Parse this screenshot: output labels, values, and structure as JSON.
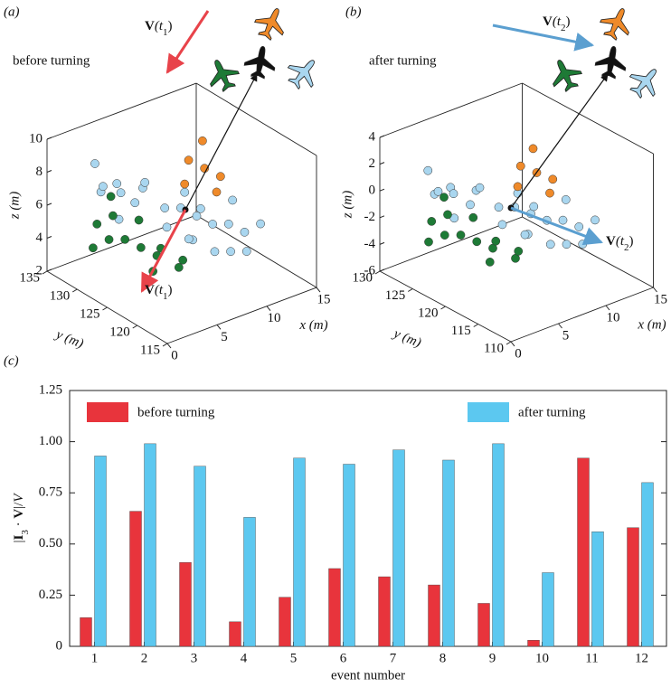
{
  "chart_data": [
    {
      "type": "scatter3d",
      "label": "(a)",
      "note": "before turning",
      "vectors": [
        [
          "V",
          "(t",
          "1",
          ")"
        ],
        [
          "V",
          "(t",
          "1",
          ")"
        ]
      ],
      "xlabel": "x (m)",
      "ylabel": "y (m)",
      "zlabel": "z (m)",
      "xlim": [
        0,
        15
      ],
      "ylim": [
        115,
        135
      ],
      "zlim": [
        2,
        10
      ],
      "xticks": [
        0,
        5,
        10,
        15
      ],
      "yticks": [
        115,
        120,
        125,
        130,
        135
      ],
      "zticks": [
        2,
        4,
        6,
        8,
        10
      ],
      "groups": [
        {
          "color": "#a9d6ef",
          "x": [
            3,
            4,
            2,
            5,
            3,
            6,
            4,
            7,
            8,
            9,
            10,
            11,
            12,
            8,
            9,
            10,
            7,
            6,
            11,
            12,
            5,
            3,
            9,
            13,
            10
          ],
          "y": [
            131,
            130,
            129,
            131,
            128,
            129,
            127,
            127,
            126,
            125,
            124,
            123,
            122,
            124,
            122,
            121,
            123,
            125,
            120,
            124,
            127,
            132,
            127,
            121,
            126
          ],
          "z": [
            7,
            7.5,
            8,
            6.5,
            6,
            7,
            7,
            6,
            6,
            5.5,
            5,
            5,
            4.5,
            4.5,
            4,
            4,
            5,
            5.5,
            4,
            6,
            8,
            8.5,
            6.5,
            5,
            5.5
          ]
        },
        {
          "color": "#1e7a36",
          "x": [
            2,
            3,
            4,
            2,
            5,
            4,
            6,
            3,
            5,
            6,
            7,
            4,
            1
          ],
          "y": [
            128,
            127,
            126,
            130,
            125,
            124,
            123,
            129,
            128,
            126,
            124,
            131,
            129
          ],
          "z": [
            5,
            5,
            4.5,
            5.5,
            4,
            3.5,
            3.5,
            6,
            5.5,
            4,
            3.5,
            6.5,
            4.5
          ]
        },
        {
          "color": "#ef8a2a",
          "x": [
            10,
            11,
            12,
            9,
            12,
            11
          ],
          "y": [
            128,
            127,
            126,
            127,
            129,
            125
          ],
          "z": [
            8,
            7.5,
            7,
            7,
            8.5,
            6.5
          ]
        }
      ]
    },
    {
      "type": "scatter3d",
      "label": "(b)",
      "note": "after turning",
      "vectors": [
        [
          "V",
          "(t",
          "2",
          ")"
        ],
        [
          "V",
          "(t",
          "2",
          ")"
        ]
      ],
      "xlabel": "x (m)",
      "ylabel": "y (m)",
      "zlabel": "z (m)",
      "xlim": [
        0,
        15
      ],
      "ylim": [
        110,
        130
      ],
      "zlim": [
        -6,
        4
      ],
      "xticks": [
        0,
        5,
        10,
        15
      ],
      "yticks": [
        110,
        115,
        120,
        125,
        130
      ],
      "zticks": [
        -6,
        -4,
        -2,
        0,
        2,
        4
      ],
      "groups": [
        {
          "color": "#a9d6ef",
          "x": [
            3,
            4,
            2,
            5,
            3,
            6,
            4,
            7,
            8,
            9,
            10,
            11,
            12,
            8,
            9,
            10,
            7,
            6,
            11,
            12,
            5,
            3,
            9,
            13,
            10
          ],
          "y": [
            126,
            125,
            124,
            126,
            123,
            124,
            122,
            122,
            121,
            120,
            119,
            118,
            117,
            119,
            117,
            116,
            118,
            120,
            115,
            119,
            122,
            127,
            122,
            116,
            121
          ],
          "z": [
            0,
            0.5,
            1,
            -0.5,
            -1,
            0,
            0,
            -1,
            -1,
            -1.5,
            -2,
            -2,
            -2.5,
            -2.5,
            -3,
            -3,
            -2,
            -1.5,
            -3,
            -1,
            1,
            1.5,
            -0.5,
            -2,
            -1.5
          ]
        },
        {
          "color": "#1e7a36",
          "x": [
            2,
            3,
            4,
            2,
            5,
            4,
            6,
            3,
            5,
            6,
            7,
            4,
            1
          ],
          "y": [
            123,
            122,
            121,
            125,
            120,
            119,
            118,
            124,
            123,
            121,
            119,
            126,
            124
          ],
          "z": [
            -2,
            -2,
            -2.5,
            -1.5,
            -3,
            -3.5,
            -3.5,
            -1,
            -1.5,
            -3,
            -3.5,
            -0.5,
            -2.5
          ]
        },
        {
          "color": "#ef8a2a",
          "x": [
            10,
            11,
            12,
            9,
            12,
            11
          ],
          "y": [
            123,
            122,
            121,
            122,
            124,
            120
          ],
          "z": [
            1,
            0.5,
            0,
            0,
            1.5,
            -0.5
          ]
        }
      ]
    },
    {
      "type": "bar",
      "label": "(c)",
      "ylabel": [
        "|",
        "I",
        "3",
        " · ",
        "V",
        "|/",
        "V"
      ],
      "xlabel": "event number",
      "categories": [
        "1",
        "2",
        "3",
        "4",
        "5",
        "6",
        "7",
        "8",
        "9",
        "10",
        "11",
        "12"
      ],
      "series": [
        {
          "name": "before turning",
          "color": "#e8343c",
          "values": [
            0.14,
            0.66,
            0.41,
            0.12,
            0.24,
            0.38,
            0.34,
            0.3,
            0.21,
            0.03,
            0.92,
            0.58
          ]
        },
        {
          "name": "after turning",
          "color": "#5cc8f0",
          "values": [
            0.93,
            0.99,
            0.88,
            0.63,
            0.92,
            0.89,
            0.96,
            0.91,
            0.99,
            0.36,
            0.56,
            0.8
          ]
        }
      ],
      "ylim": [
        0,
        1.25
      ],
      "yticks": [
        0,
        0.25,
        {
          "value": 0.5,
          "label": "0.50"
        },
        0.75,
        {
          "value": 1,
          "label": "1.00"
        },
        1.25
      ]
    }
  ]
}
